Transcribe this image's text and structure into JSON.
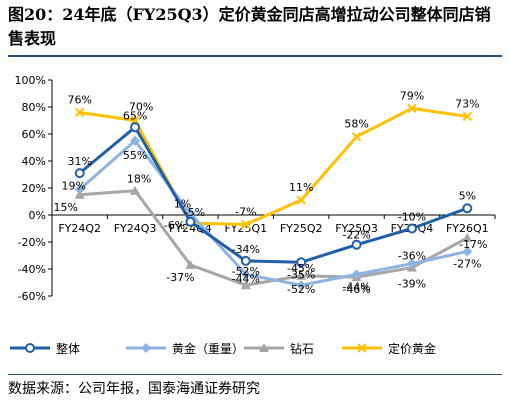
{
  "header": {
    "title": "图20：24年底（FY25Q3）定价黄金同店高增拉动公司整体同店销售表现"
  },
  "footer": {
    "source": "数据来源：公司年报，国泰海通证券研究"
  },
  "chart_data": {
    "type": "line",
    "categories": [
      "FY24Q2",
      "FY24Q3",
      "FY24Q4",
      "FY25Q1",
      "FY25Q2",
      "FY25Q3",
      "FY25Q4",
      "FY26Q1"
    ],
    "series": [
      {
        "name": "整体",
        "color": "#1f5fa8",
        "marker": "circle",
        "values": [
          31,
          65,
          -5,
          -34,
          -35,
          -22,
          -10,
          5
        ],
        "labels": [
          "31%",
          "65%",
          "-5%",
          "-34%",
          "-35%",
          "-22%",
          "-10%",
          "5%"
        ]
      },
      {
        "name": "黄金（重量）",
        "color": "#8db3e2",
        "marker": "diamond",
        "values": [
          19,
          55,
          1,
          -44,
          -52,
          -44,
          -36,
          -27
        ],
        "labels": [
          "19%",
          "55%",
          "1%",
          "-44%",
          "-52%",
          "-44%",
          "-36%",
          "-27%"
        ]
      },
      {
        "name": "钻石",
        "color": "#a6a6a6",
        "marker": "triangle",
        "values": [
          15,
          18,
          -37,
          -52,
          -45,
          -46,
          -39,
          -17
        ],
        "labels": [
          "15%",
          "18%",
          "-37%",
          "-52%",
          "-45%",
          "-46%",
          "-39%",
          "-17%"
        ]
      },
      {
        "name": "定价黄金",
        "color": "#ffc000",
        "marker": "x",
        "values": [
          76,
          70,
          -6,
          -7,
          11,
          58,
          79,
          73
        ],
        "labels": [
          "76%",
          "70%",
          "-6%",
          "-7%",
          "11%",
          "58%",
          "79%",
          "73%"
        ]
      }
    ],
    "yticks": [
      "100%",
      "80%",
      "60%",
      "40%",
      "20%",
      "0%",
      "-20%",
      "-40%",
      "-60%"
    ],
    "ylim": [
      -60,
      100
    ],
    "grid": false,
    "legend": "bottom"
  }
}
